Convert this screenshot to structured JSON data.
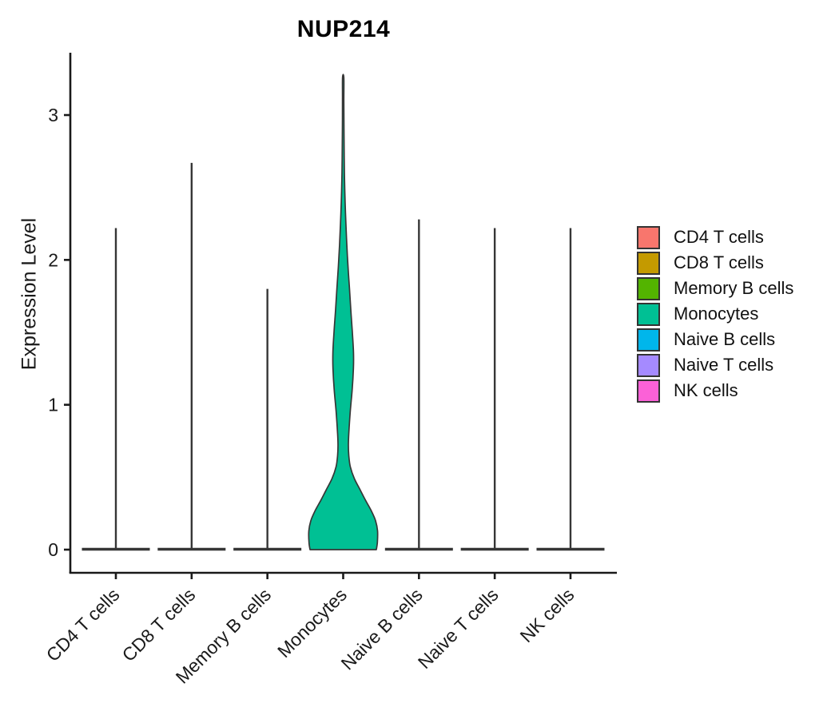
{
  "chart_data": {
    "type": "violin",
    "title": "NUP214",
    "ylabel": "Expression Level",
    "xlabel": "",
    "categories": [
      "CD4 T cells",
      "CD8 T cells",
      "Memory B cells",
      "Monocytes",
      "Naive B cells",
      "Naive T cells",
      "NK cells"
    ],
    "yticks": [
      0,
      1,
      2,
      3
    ],
    "ylim": [
      -0.16,
      3.43
    ],
    "grid": false,
    "legend_position": "right",
    "series": [
      {
        "name": "CD4 T cells",
        "color": "#F8766D",
        "max_expression": 2.22,
        "shape": "spike"
      },
      {
        "name": "CD8 T cells",
        "color": "#C49A00",
        "max_expression": 2.67,
        "shape": "spike"
      },
      {
        "name": "Memory B cells",
        "color": "#53B400",
        "max_expression": 1.8,
        "shape": "spike"
      },
      {
        "name": "Monocytes",
        "color": "#00C094",
        "max_expression": 3.26,
        "shape": "violin",
        "density_profile": [
          [
            0.0,
            41.5
          ],
          [
            0.05,
            42.8
          ],
          [
            0.13,
            43.0
          ],
          [
            0.2,
            40.5
          ],
          [
            0.27,
            35.0
          ],
          [
            0.34,
            28.0
          ],
          [
            0.41,
            21.5
          ],
          [
            0.49,
            14.0
          ],
          [
            0.57,
            9.0
          ],
          [
            0.65,
            7.0
          ],
          [
            0.72,
            6.5
          ],
          [
            0.8,
            7.0
          ],
          [
            0.95,
            8.8
          ],
          [
            1.1,
            11.2
          ],
          [
            1.25,
            12.8
          ],
          [
            1.36,
            12.9
          ],
          [
            1.5,
            11.5
          ],
          [
            1.65,
            9.6
          ],
          [
            1.8,
            7.9
          ],
          [
            1.95,
            6.1
          ],
          [
            2.1,
            4.6
          ],
          [
            2.25,
            3.4
          ],
          [
            2.4,
            2.4
          ],
          [
            2.55,
            1.7
          ],
          [
            2.7,
            1.3
          ],
          [
            2.9,
            1.0
          ],
          [
            3.1,
            0.85
          ],
          [
            3.26,
            0.8
          ]
        ]
      },
      {
        "name": "Naive B cells",
        "color": "#00B6EB",
        "max_expression": 2.28,
        "shape": "spike"
      },
      {
        "name": "Naive T cells",
        "color": "#A58AFF",
        "max_expression": 2.22,
        "shape": "spike"
      },
      {
        "name": "NK cells",
        "color": "#FB61D7",
        "max_expression": 2.22,
        "shape": "spike"
      }
    ],
    "styles": {
      "axis_color": "#1a1a1a",
      "violin_outline": "#363636",
      "text_color": "#1a1a1a",
      "background": "#ffffff"
    }
  }
}
